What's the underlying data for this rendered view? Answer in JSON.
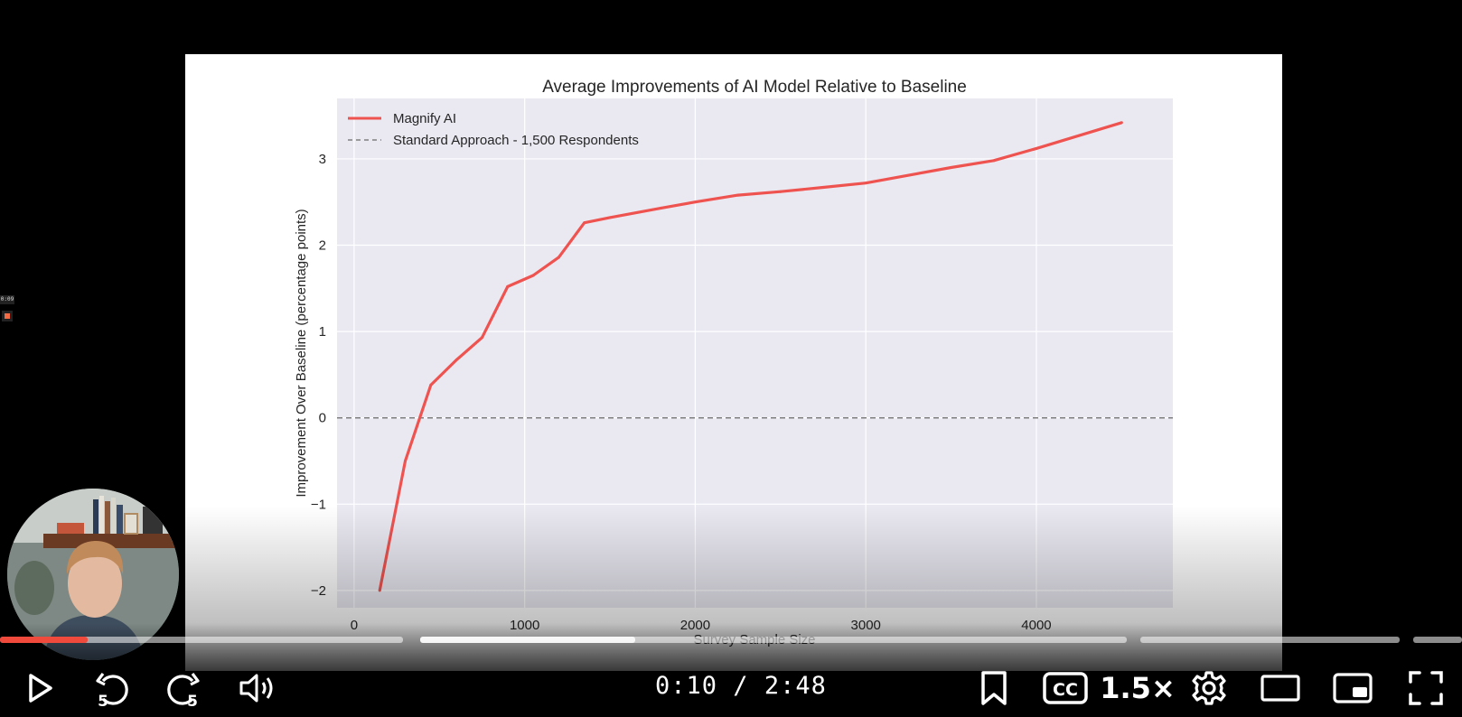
{
  "player": {
    "current_time": "0:10",
    "separator": " / ",
    "duration": "2:48",
    "speed_label": "1.5×",
    "skip_back_seconds": "5",
    "skip_forward_seconds": "5",
    "progress_fraction": 0.06,
    "accent_color": "#f04a3c",
    "mini_timestamp": "0:09"
  },
  "chart_data": {
    "type": "line",
    "title": "Average Improvements of AI Model Relative to Baseline",
    "xlabel": "Survey Sample Size",
    "ylabel": "Improvement Over Baseline (percentage points)",
    "xlim": [
      -100,
      4800
    ],
    "ylim": [
      -2.2,
      3.7
    ],
    "xticks": [
      0,
      1000,
      2000,
      3000,
      4000
    ],
    "yticks": [
      -2,
      -1,
      0,
      1,
      2,
      3
    ],
    "grid": true,
    "legend_position": "upper-left",
    "series": [
      {
        "name": "Magnify AI",
        "color": "#ef5350",
        "style": "solid",
        "x": [
          150,
          300,
          450,
          600,
          750,
          900,
          1050,
          1200,
          1350,
          1500,
          1800,
          2000,
          2250,
          2500,
          2750,
          3000,
          3500,
          3750,
          4000,
          4500
        ],
        "y": [
          -2.0,
          -0.5,
          0.38,
          0.67,
          0.93,
          1.52,
          1.65,
          1.86,
          2.26,
          2.32,
          2.43,
          2.5,
          2.58,
          2.62,
          2.67,
          2.72,
          2.9,
          2.98,
          3.12,
          3.42
        ]
      },
      {
        "name": "Standard Approach - 1,500 Respondents",
        "color": "#7f7f7f",
        "style": "dashed",
        "y_constant": 0
      }
    ]
  }
}
